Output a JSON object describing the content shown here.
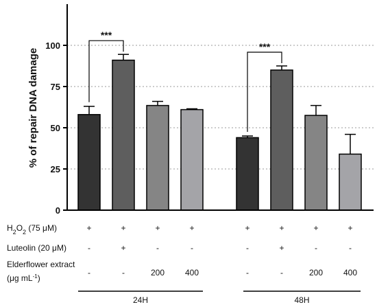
{
  "chart_data": {
    "type": "bar",
    "ylabel": "% of repair DNA damage",
    "ylim": [
      0,
      125
    ],
    "yticks": [
      0,
      25,
      50,
      75,
      100
    ],
    "grid": "horizontal dotted",
    "groups": [
      {
        "label": "24H",
        "bars": [
          {
            "value": 58,
            "error": 5,
            "color": "#333333"
          },
          {
            "value": 91,
            "error": 3.5,
            "color": "#5e5e5e"
          },
          {
            "value": 63.5,
            "error": 2.5,
            "color": "#858585"
          },
          {
            "value": 61,
            "error": 0.5,
            "color": "#a4a4a8"
          }
        ]
      },
      {
        "label": "48H",
        "bars": [
          {
            "value": 44,
            "error": 1,
            "color": "#333333"
          },
          {
            "value": 85,
            "error": 2.5,
            "color": "#5e5e5e"
          },
          {
            "value": 57.5,
            "error": 6,
            "color": "#858585"
          },
          {
            "value": 34,
            "error": 12,
            "color": "#a4a4a8"
          }
        ]
      }
    ],
    "annotations": [
      {
        "label": "***",
        "group": 0,
        "from": 0,
        "to": 1
      },
      {
        "label": "***",
        "group": 1,
        "from": 0,
        "to": 1
      }
    ]
  },
  "conditions": [
    {
      "label_main": "H",
      "label_sub": "2",
      "label_mid": "O",
      "label_sub2": "2",
      "label_tail": " (75 μM)",
      "values": [
        "+",
        "+",
        "+",
        "+",
        "+",
        "+",
        "+",
        "+"
      ]
    },
    {
      "label": "Luteolin (20 μM)",
      "values": [
        "-",
        "+",
        "-",
        "-",
        "-",
        "+",
        "-",
        "-"
      ]
    },
    {
      "label": "Elderflower extract",
      "label2_pre": "(μg mL",
      "label2_sup": "-1",
      "label2_post": ")",
      "values": [
        "-",
        "-",
        "200",
        "400",
        "-",
        "-",
        "200",
        "400"
      ]
    }
  ]
}
